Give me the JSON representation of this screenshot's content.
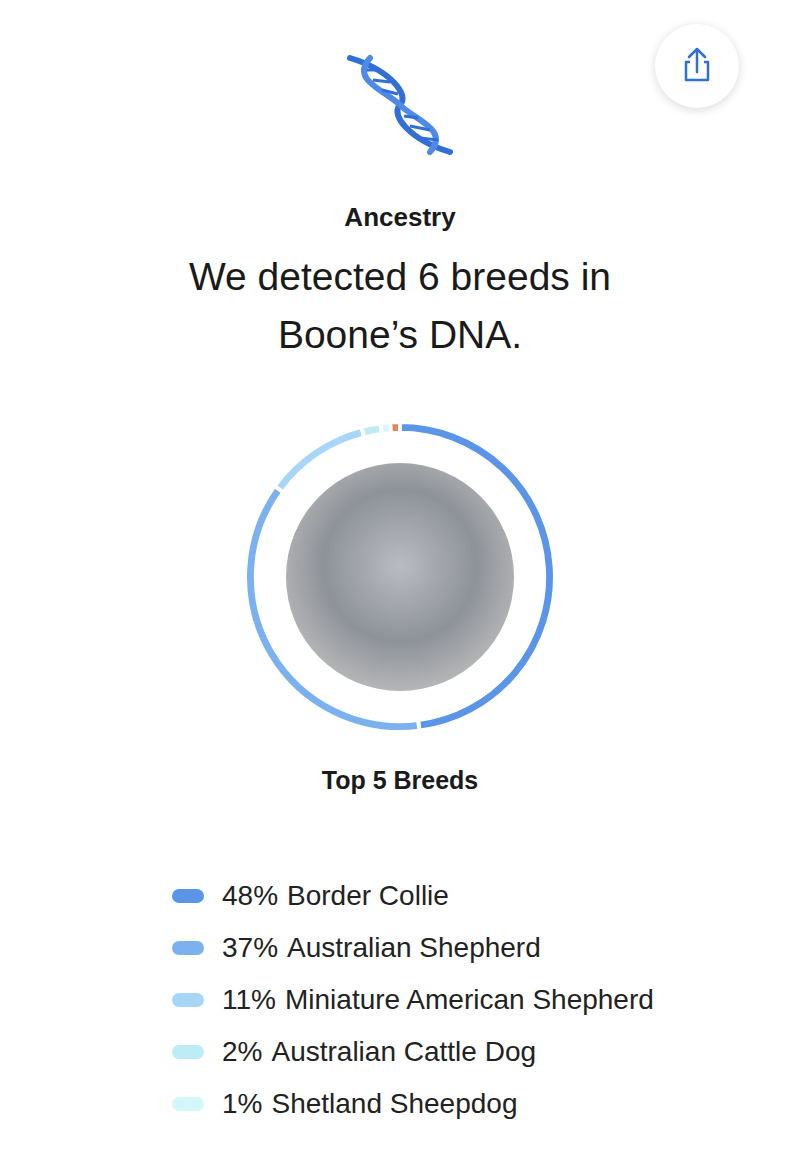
{
  "chart_data": {
    "type": "pie",
    "title": "Ancestry",
    "subtitle": "We detected 6 breeds in Boone’s DNA.",
    "legend_title": "Top 5 Breeds",
    "categories": [
      "Border Collie",
      "Australian Shepherd",
      "Miniature American Shepherd",
      "Australian Cattle Dog",
      "Shetland Sheepdog",
      null
    ],
    "values": [
      48,
      37,
      11,
      2,
      1,
      1
    ],
    "value_labels": [
      "48%",
      "37%",
      "11%",
      "2%",
      "1%",
      null
    ],
    "colors": [
      "#5b95e8",
      "#7cb1f0",
      "#a7d6f8",
      "#bcedf6",
      "#d6f7f9",
      "#e8835a"
    ],
    "legend": "bottom"
  }
}
